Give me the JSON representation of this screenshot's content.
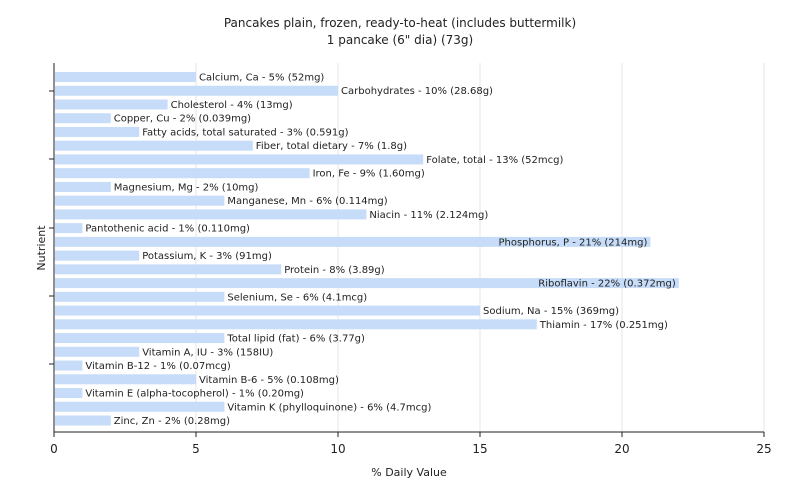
{
  "chart_data": {
    "type": "bar",
    "orientation": "horizontal",
    "title": "Pancakes plain, frozen, ready-to-heat (includes buttermilk)",
    "subtitle": "1 pancake (6\" dia) (73g)",
    "xlabel": "% Daily Value",
    "ylabel": "Nutrient",
    "xlim": [
      0,
      25
    ],
    "xticks": [
      0,
      5,
      10,
      15,
      20,
      25
    ],
    "grid": true,
    "colors": {
      "bar": "#c6dcf8"
    },
    "bars": [
      {
        "name": "Calcium, Ca",
        "value": 5,
        "label": "Calcium, Ca - 5% (52mg)"
      },
      {
        "name": "Carbohydrates",
        "value": 10,
        "label": "Carbohydrates - 10% (28.68g)"
      },
      {
        "name": "Cholesterol",
        "value": 4,
        "label": "Cholesterol - 4% (13mg)"
      },
      {
        "name": "Copper, Cu",
        "value": 2,
        "label": "Copper, Cu - 2% (0.039mg)"
      },
      {
        "name": "Fatty acids, total saturated",
        "value": 3,
        "label": "Fatty acids, total saturated - 3% (0.591g)"
      },
      {
        "name": "Fiber, total dietary",
        "value": 7,
        "label": "Fiber, total dietary - 7% (1.8g)"
      },
      {
        "name": "Folate, total",
        "value": 13,
        "label": "Folate, total - 13% (52mcg)"
      },
      {
        "name": "Iron, Fe",
        "value": 9,
        "label": "Iron, Fe - 9% (1.60mg)"
      },
      {
        "name": "Magnesium, Mg",
        "value": 2,
        "label": "Magnesium, Mg - 2% (10mg)"
      },
      {
        "name": "Manganese, Mn",
        "value": 6,
        "label": "Manganese, Mn - 6% (0.114mg)"
      },
      {
        "name": "Niacin",
        "value": 11,
        "label": "Niacin - 11% (2.124mg)"
      },
      {
        "name": "Pantothenic acid",
        "value": 1,
        "label": "Pantothenic acid - 1% (0.110mg)"
      },
      {
        "name": "Phosphorus, P",
        "value": 21,
        "label": "Phosphorus, P - 21% (214mg)"
      },
      {
        "name": "Potassium, K",
        "value": 3,
        "label": "Potassium, K - 3% (91mg)"
      },
      {
        "name": "Protein",
        "value": 8,
        "label": "Protein - 8% (3.89g)"
      },
      {
        "name": "Riboflavin",
        "value": 22,
        "label": "Riboflavin - 22% (0.372mg)"
      },
      {
        "name": "Selenium, Se",
        "value": 6,
        "label": "Selenium, Se - 6% (4.1mcg)"
      },
      {
        "name": "Sodium, Na",
        "value": 15,
        "label": "Sodium, Na - 15% (369mg)"
      },
      {
        "name": "Thiamin",
        "value": 17,
        "label": "Thiamin - 17% (0.251mg)"
      },
      {
        "name": "Total lipid (fat)",
        "value": 6,
        "label": "Total lipid (fat) - 6% (3.77g)"
      },
      {
        "name": "Vitamin A, IU",
        "value": 3,
        "label": "Vitamin A, IU - 3% (158IU)"
      },
      {
        "name": "Vitamin B-12",
        "value": 1,
        "label": "Vitamin B-12 - 1% (0.07mcg)"
      },
      {
        "name": "Vitamin B-6",
        "value": 5,
        "label": "Vitamin B-6 - 5% (0.108mg)"
      },
      {
        "name": "Vitamin E (alpha-tocopherol)",
        "value": 1,
        "label": "Vitamin E (alpha-tocopherol) - 1% (0.20mg)"
      },
      {
        "name": "Vitamin K (phylloquinone)",
        "value": 6,
        "label": "Vitamin K (phylloquinone) - 6% (4.7mcg)"
      },
      {
        "name": "Zinc, Zn",
        "value": 2,
        "label": "Zinc, Zn - 2% (0.28mg)"
      }
    ]
  }
}
